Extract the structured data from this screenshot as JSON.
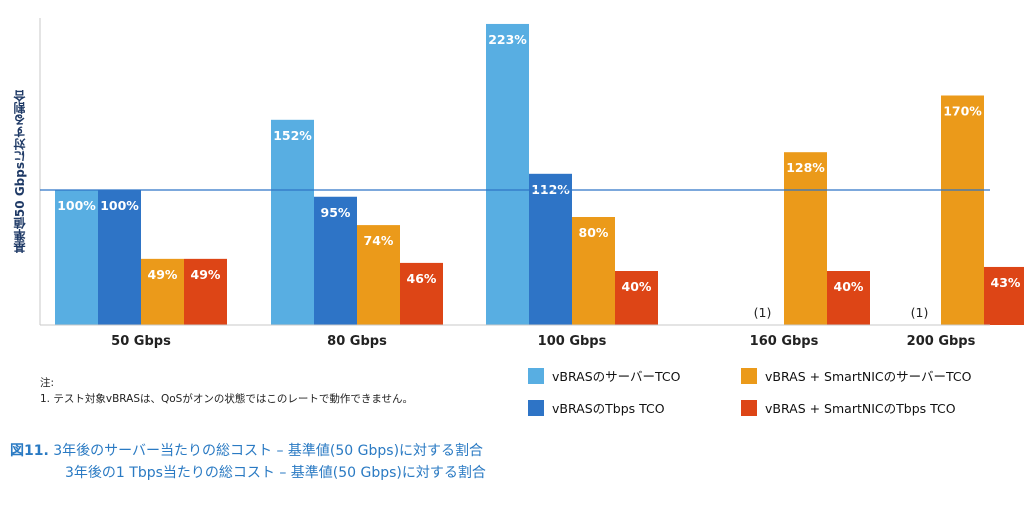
{
  "chart_data": {
    "type": "bar",
    "ylabel": "基準値50 Gbpsに対する割合",
    "categories": [
      "50 Gbps",
      "80 Gbps",
      "100 Gbps",
      "160 Gbps",
      "200 Gbps"
    ],
    "series": [
      {
        "name": "vBRASのサーバーTCO",
        "color": "#58aee2",
        "values": [
          100,
          152,
          223,
          null,
          null
        ],
        "labels": [
          "100%",
          "152%",
          "223%",
          "",
          ""
        ]
      },
      {
        "name": "vBRASのTbps TCO",
        "color": "#2e74c6",
        "values": [
          100,
          95,
          112,
          null,
          null
        ],
        "labels": [
          "100%",
          "95%",
          "112%",
          "(1)",
          "(1)"
        ]
      },
      {
        "name": "vBRAS + SmartNICのサーバーTCO",
        "color": "#eb9a1a",
        "values": [
          49,
          74,
          80,
          128,
          170
        ],
        "labels": [
          "49%",
          "74%",
          "80%",
          "128%",
          "170%"
        ]
      },
      {
        "name": "vBRAS + SmartNICのTbps TCO",
        "color": "#dd4516",
        "values": [
          49,
          46,
          40,
          40,
          43
        ],
        "labels": [
          "49%",
          "46%",
          "40%",
          "40%",
          "43%"
        ]
      }
    ],
    "reference_line": 100,
    "ylim": [
      0,
      240
    ],
    "grid": false,
    "legend_position": "bottom-right"
  },
  "notes": {
    "title": "注:",
    "line1": "1. テスト対象vBRASは、QoSがオンの状態ではこのレートで動作できません。"
  },
  "caption": {
    "figure_label": "図11.",
    "line1": "3年後のサーバー当たりの総コスト – 基準値(50 Gbps)に対する割合",
    "line2": "3年後の1 Tbps当たりの総コスト – 基準値(50 Gbps)に対する割合"
  }
}
